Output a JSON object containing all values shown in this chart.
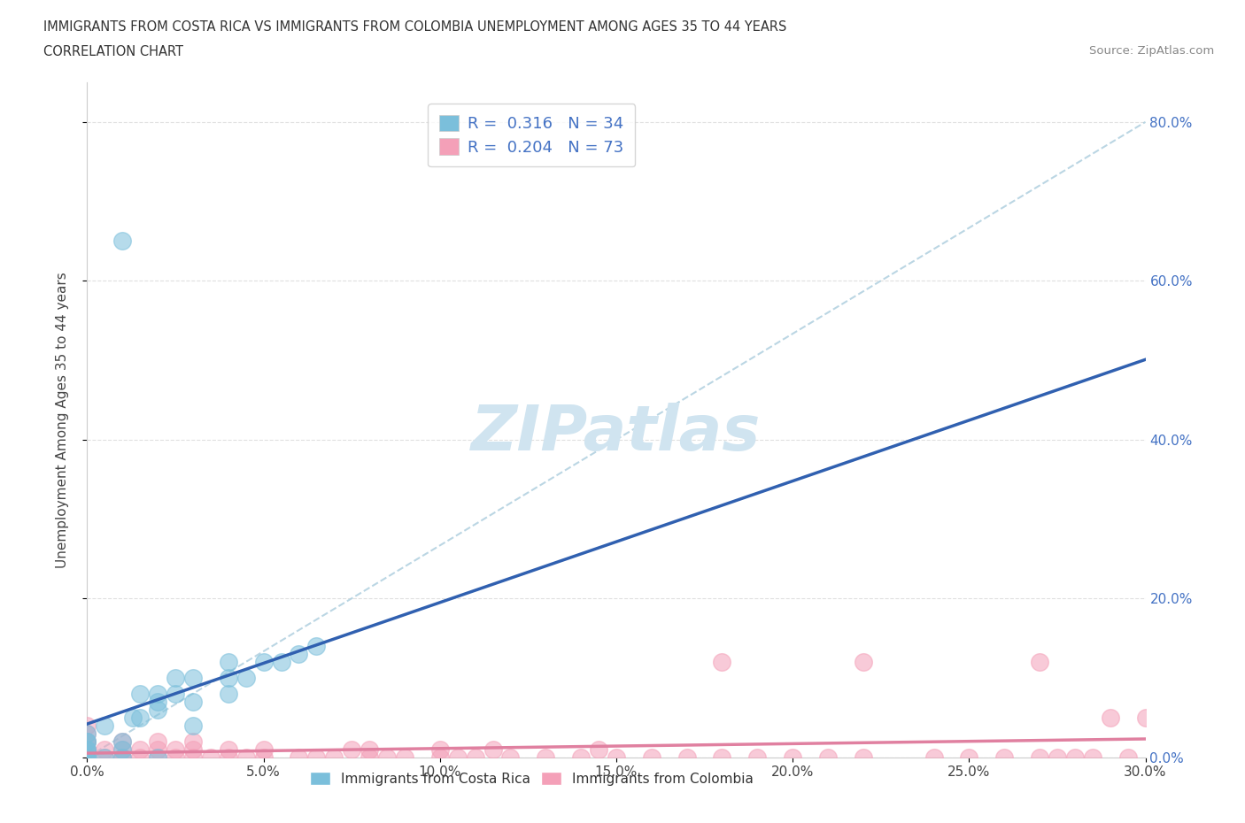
{
  "title_line1": "IMMIGRANTS FROM COSTA RICA VS IMMIGRANTS FROM COLOMBIA UNEMPLOYMENT AMONG AGES 35 TO 44 YEARS",
  "title_line2": "CORRELATION CHART",
  "source_text": "Source: ZipAtlas.com",
  "ylabel": "Unemployment Among Ages 35 to 44 years",
  "xlim": [
    0.0,
    0.3
  ],
  "ylim": [
    0.0,
    0.85
  ],
  "xtick_labels": [
    "0.0%",
    "5.0%",
    "10.0%",
    "15.0%",
    "20.0%",
    "25.0%",
    "30.0%"
  ],
  "xtick_values": [
    0.0,
    0.05,
    0.1,
    0.15,
    0.2,
    0.25,
    0.3
  ],
  "ytick_labels": [
    "0.0%",
    "20.0%",
    "40.0%",
    "60.0%",
    "80.0%"
  ],
  "ytick_values": [
    0.0,
    0.2,
    0.4,
    0.6,
    0.8
  ],
  "costa_rica_color": "#7bbfdb",
  "colombia_color": "#f4a0b8",
  "costa_rica_R": 0.316,
  "costa_rica_N": 34,
  "colombia_R": 0.204,
  "colombia_N": 73,
  "legend_label_cr": "Immigrants from Costa Rica",
  "legend_label_co": "Immigrants from Colombia",
  "costa_rica_x": [
    0.0,
    0.0,
    0.0,
    0.0,
    0.0,
    0.0,
    0.0,
    0.0,
    0.005,
    0.005,
    0.01,
    0.01,
    0.01,
    0.01,
    0.013,
    0.015,
    0.015,
    0.02,
    0.02,
    0.02,
    0.02,
    0.025,
    0.025,
    0.03,
    0.03,
    0.03,
    0.04,
    0.04,
    0.04,
    0.045,
    0.05,
    0.055,
    0.06,
    0.065
  ],
  "costa_rica_y": [
    0.0,
    0.0,
    0.005,
    0.01,
    0.01,
    0.02,
    0.02,
    0.03,
    0.0,
    0.04,
    0.0,
    0.01,
    0.02,
    0.65,
    0.05,
    0.05,
    0.08,
    0.0,
    0.06,
    0.07,
    0.08,
    0.08,
    0.1,
    0.04,
    0.07,
    0.1,
    0.08,
    0.1,
    0.12,
    0.1,
    0.12,
    0.12,
    0.13,
    0.14
  ],
  "colombia_x": [
    0.0,
    0.0,
    0.0,
    0.0,
    0.0,
    0.0,
    0.0,
    0.0,
    0.0,
    0.0,
    0.0,
    0.0,
    0.0,
    0.005,
    0.005,
    0.01,
    0.01,
    0.01,
    0.01,
    0.015,
    0.015,
    0.02,
    0.02,
    0.02,
    0.025,
    0.025,
    0.03,
    0.03,
    0.03,
    0.035,
    0.04,
    0.04,
    0.045,
    0.05,
    0.05,
    0.06,
    0.065,
    0.07,
    0.075,
    0.08,
    0.08,
    0.085,
    0.09,
    0.1,
    0.1,
    0.105,
    0.11,
    0.115,
    0.12,
    0.13,
    0.14,
    0.145,
    0.15,
    0.16,
    0.17,
    0.18,
    0.19,
    0.2,
    0.21,
    0.22,
    0.24,
    0.25,
    0.26,
    0.27,
    0.275,
    0.28,
    0.285,
    0.29,
    0.295,
    0.3,
    0.18,
    0.22,
    0.27
  ],
  "colombia_y": [
    0.0,
    0.0,
    0.0,
    0.0,
    0.0,
    0.0,
    0.01,
    0.01,
    0.01,
    0.02,
    0.02,
    0.03,
    0.04,
    0.0,
    0.01,
    0.0,
    0.0,
    0.01,
    0.02,
    0.0,
    0.01,
    0.0,
    0.01,
    0.02,
    0.0,
    0.01,
    0.0,
    0.01,
    0.02,
    0.0,
    0.0,
    0.01,
    0.0,
    0.0,
    0.01,
    0.0,
    0.0,
    0.0,
    0.01,
    0.0,
    0.01,
    0.0,
    0.0,
    0.0,
    0.01,
    0.0,
    0.0,
    0.01,
    0.0,
    0.0,
    0.0,
    0.01,
    0.0,
    0.0,
    0.0,
    0.0,
    0.0,
    0.0,
    0.0,
    0.0,
    0.0,
    0.0,
    0.0,
    0.0,
    0.0,
    0.0,
    0.0,
    0.05,
    0.0,
    0.05,
    0.12,
    0.12,
    0.12
  ],
  "background_color": "#ffffff",
  "grid_color": "#dddddd",
  "text_color": "#4472c4",
  "watermark_color": "#d0e4f0",
  "trendline_color_cr": "#3060b0",
  "trendline_color_co": "#e080a0",
  "trendline_dashed_color": "#aaccdd"
}
